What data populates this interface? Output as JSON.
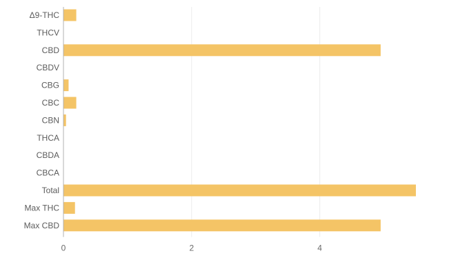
{
  "chart_data": {
    "type": "bar",
    "orientation": "horizontal",
    "categories": [
      "Δ9-THC",
      "THCV",
      "CBD",
      "CBDV",
      "CBG",
      "CBC",
      "CBN",
      "THCA",
      "CBDA",
      "CBCA",
      "Total",
      "Max THC",
      "Max CBD"
    ],
    "values": [
      0.2,
      0.0,
      4.95,
      0.0,
      0.08,
      0.2,
      0.04,
      0.0,
      0.0,
      0.0,
      5.5,
      0.18,
      4.95
    ],
    "x_ticks": [
      "0",
      "2",
      "4"
    ],
    "xlim": [
      0,
      5.5
    ],
    "grid": true,
    "legend": "none",
    "bar_color": "#f4c466",
    "grid_color": "#ececec",
    "axis_color": "#b0b0b0"
  }
}
